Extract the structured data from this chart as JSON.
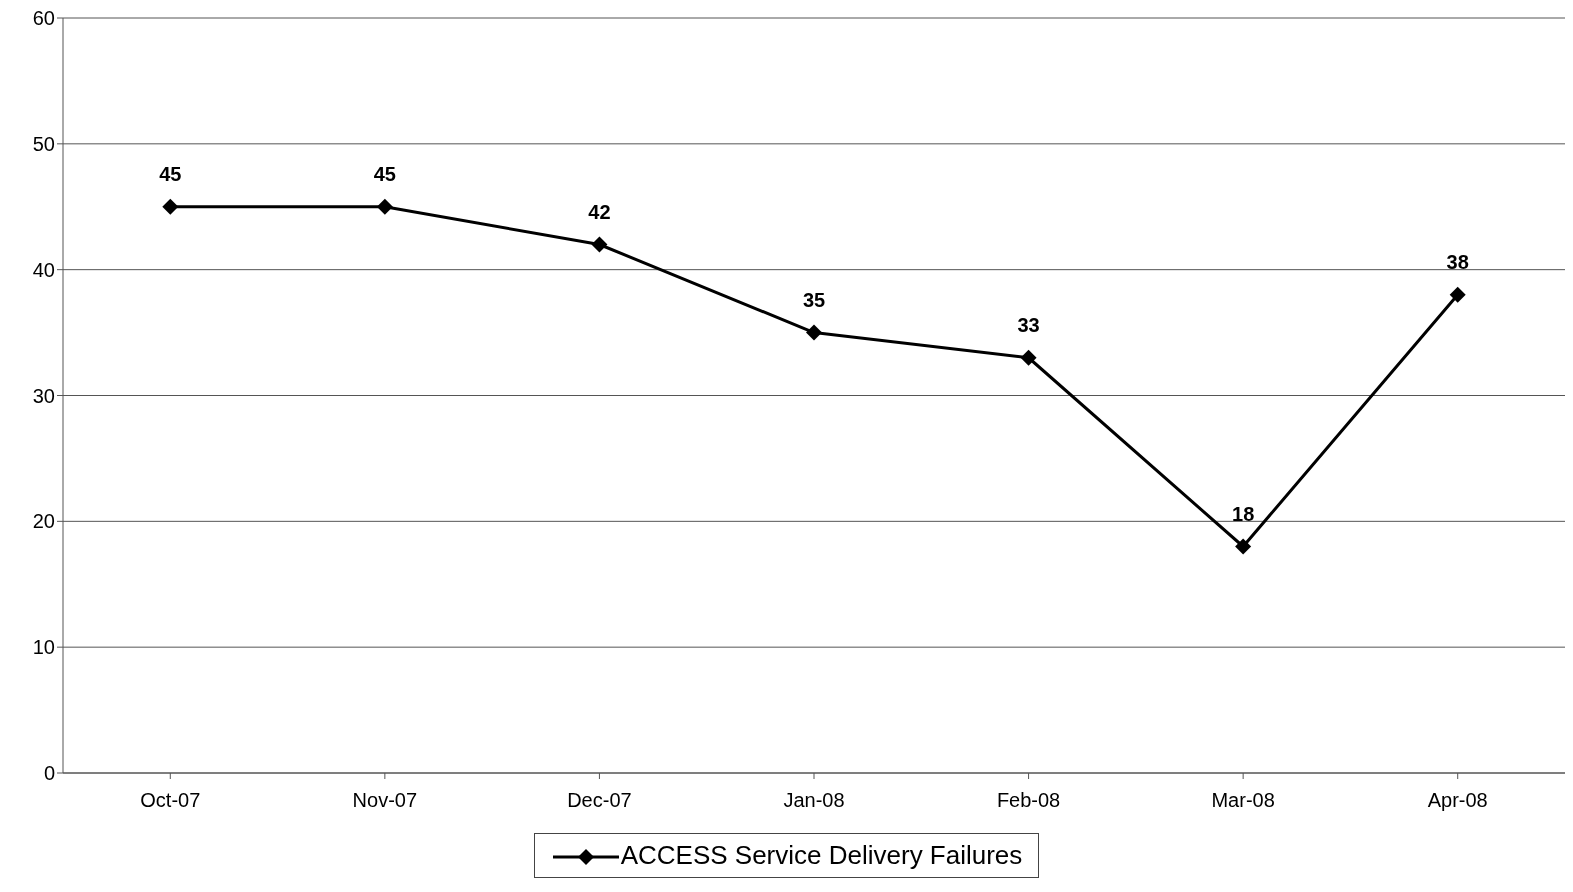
{
  "chart_data": {
    "type": "line",
    "categories": [
      "Oct-07",
      "Nov-07",
      "Dec-07",
      "Jan-08",
      "Feb-08",
      "Mar-08",
      "Apr-08"
    ],
    "series": [
      {
        "name": "ACCESS Service Delivery Failures",
        "color": "#000000",
        "values": [
          45,
          45,
          42,
          35,
          33,
          18,
          38
        ]
      }
    ],
    "ylim": [
      0,
      60
    ],
    "yticks": [
      0,
      10,
      20,
      30,
      40,
      50,
      60
    ],
    "grid": "y",
    "legend": "bottom",
    "marker": "diamond",
    "line_style": "solid",
    "data_labels": true
  }
}
